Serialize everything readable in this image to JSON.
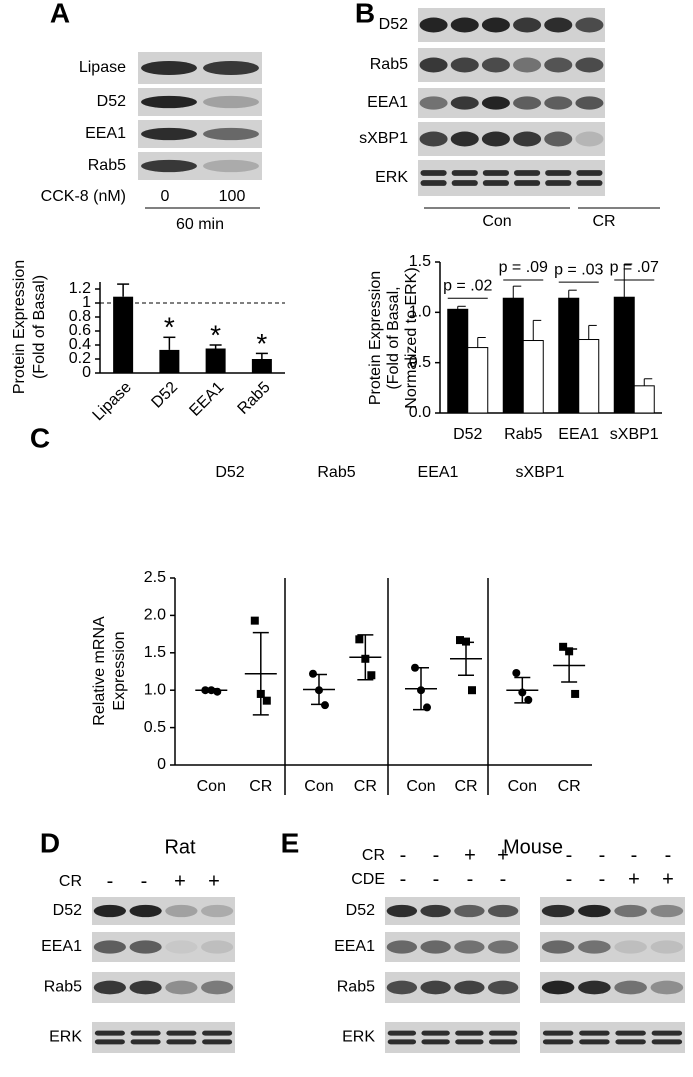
{
  "panel_a": {
    "label": "A",
    "blot_rows": [
      "Lipase",
      "D52",
      "EEA1",
      "Rab5"
    ],
    "treatment_label": "CCK-8 (nM)",
    "doses": [
      "0",
      "100"
    ],
    "time": "60 min"
  },
  "panel_b": {
    "label": "B",
    "blot_rows": [
      "D52",
      "Rab5",
      "EEA1",
      "sXBP1",
      "ERK"
    ],
    "groups": [
      "Con",
      "CR"
    ]
  },
  "panel_c": {
    "label": "C"
  },
  "panel_d": {
    "label": "D",
    "species": "Rat",
    "treatment_label": "CR",
    "signs": [
      "-",
      "-",
      "+",
      "+"
    ],
    "blot_rows": [
      "D52",
      "EEA1",
      "Rab5",
      "ERK"
    ]
  },
  "panel_e": {
    "label": "E",
    "species": "Mouse",
    "treatments": [
      {
        "label": "CR",
        "left": [
          "-",
          "-",
          "+",
          "+"
        ],
        "right": [
          "-",
          "-",
          "-",
          "-"
        ]
      },
      {
        "label": "CDE",
        "left": [
          "-",
          "-",
          "-",
          "-"
        ],
        "right": [
          "-",
          "-",
          "+",
          "+"
        ]
      }
    ],
    "blot_rows": [
      "D52",
      "EEA1",
      "Rab5",
      "ERK"
    ]
  },
  "chart_data": [
    {
      "type": "bar",
      "ylabel": [
        "Protein Expression",
        "(Fold of Basal)"
      ],
      "categories": [
        "Lipase",
        "D52",
        "EEA1",
        "Rab5"
      ],
      "values": [
        1.09,
        0.33,
        0.35,
        0.2
      ],
      "errors": [
        0.18,
        0.18,
        0.05,
        0.08
      ],
      "value_annotations": [
        null,
        "*",
        "*",
        "*"
      ],
      "reference_line": 1,
      "color": "#000000",
      "ylim": [
        0,
        1.3
      ],
      "yticks": [
        0,
        0.2,
        0.4,
        0.6,
        0.8,
        1,
        1.2
      ]
    },
    {
      "type": "grouped_bar",
      "ylabel": [
        "Protein Expression",
        "(Fold of Basal,",
        "Normalized to ERK)"
      ],
      "categories": [
        "D52",
        "Rab5",
        "EEA1",
        "sXBP1"
      ],
      "series": [
        {
          "color": "#000000",
          "values": [
            1.03,
            1.14,
            1.14,
            1.15
          ],
          "errors": [
            0.03,
            0.12,
            0.08,
            0.33
          ]
        },
        {
          "color": "#ffffff",
          "values": [
            0.65,
            0.72,
            0.73,
            0.27
          ],
          "errors": [
            0.1,
            0.2,
            0.14,
            0.07
          ]
        }
      ],
      "annotations": [
        "p = .02",
        "p = .09",
        "p = .03",
        "p = .07"
      ],
      "ylim": [
        0,
        1.5
      ],
      "yticks": [
        {
          "value": 0,
          "label": "0.0"
        },
        0.5,
        {
          "value": 1,
          "label": "1.0"
        },
        1.5
      ]
    },
    {
      "type": "dot_mean_sem",
      "ylabel": [
        "Relative mRNA",
        "Expression"
      ],
      "ylim": [
        0,
        2.5
      ],
      "yticks": [
        0,
        0.5,
        {
          "value": 1,
          "label": "1.0"
        },
        1.5,
        {
          "value": 2,
          "label": "2.0"
        },
        2.5
      ],
      "markers": [
        "circle",
        "square"
      ],
      "panels": [
        {
          "title": "D52",
          "categories": [
            "Con",
            "CR"
          ],
          "groups": [
            {
              "points": [
                1.0,
                1.0,
                0.98
              ],
              "mean": 1.0,
              "sem": 0.02
            },
            {
              "points": [
                1.93,
                0.95,
                0.86
              ],
              "mean": 1.22,
              "sem": 0.55
            }
          ]
        },
        {
          "title": "Rab5",
          "categories": [
            "Con",
            "CR"
          ],
          "groups": [
            {
              "points": [
                1.22,
                1.0,
                0.8
              ],
              "mean": 1.01,
              "sem": 0.2
            },
            {
              "points": [
                1.68,
                1.42,
                1.2
              ],
              "mean": 1.44,
              "sem": 0.3
            }
          ]
        },
        {
          "title": "EEA1",
          "categories": [
            "Con",
            "CR"
          ],
          "groups": [
            {
              "points": [
                1.3,
                1.0,
                0.77
              ],
              "mean": 1.02,
              "sem": 0.28
            },
            {
              "points": [
                1.67,
                1.65,
                1.0
              ],
              "mean": 1.42,
              "sem": 0.22
            }
          ]
        },
        {
          "title": "sXBP1",
          "categories": [
            "Con",
            "CR"
          ],
          "groups": [
            {
              "points": [
                1.23,
                0.97,
                0.87
              ],
              "mean": 1.0,
              "sem": 0.17
            },
            {
              "points": [
                1.58,
                1.52,
                0.95
              ],
              "mean": 1.33,
              "sem": 0.22
            }
          ]
        }
      ]
    }
  ]
}
